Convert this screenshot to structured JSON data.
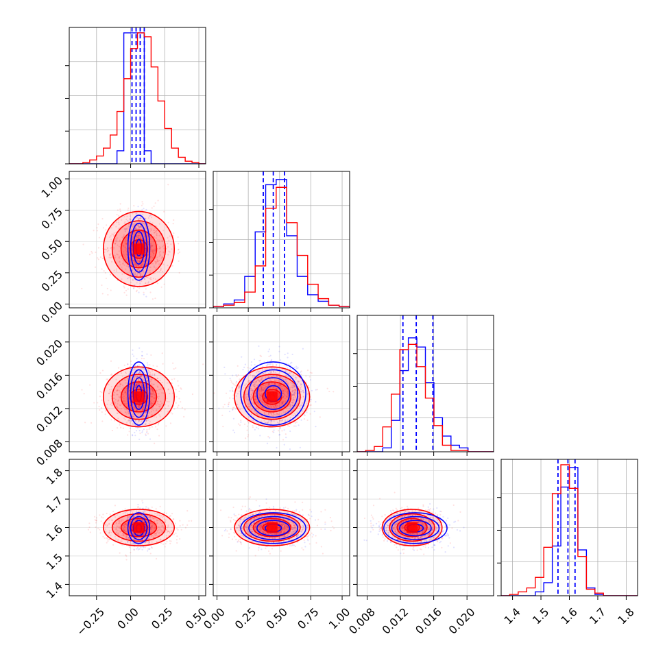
{
  "chart_data": {
    "type": "corner",
    "grid": true,
    "series": [
      {
        "color": "#0000ff",
        "hist": {
          "p0": [
            0,
            0,
            0,
            0,
            0,
            0,
            0,
            0.1,
            1.0,
            1.0,
            1.0,
            0.1,
            0,
            0,
            0,
            0,
            0,
            0,
            0,
            0
          ],
          "p1": [
            0.01,
            0.03,
            0.06,
            0.24,
            0.58,
            0.94,
            0.98,
            0.55,
            0.24,
            0.1,
            0.05,
            0.02,
            0.01
          ],
          "p2": [
            0,
            0,
            0,
            0.03,
            0.24,
            0.62,
            0.87,
            0.8,
            0.53,
            0.26,
            0.12,
            0.05,
            0.03,
            0,
            0,
            0
          ],
          "p3": [
            0,
            0,
            0,
            0,
            0.03,
            0.1,
            0.38,
            0.83,
            0.98,
            0.35,
            0.06,
            0.01,
            0,
            0,
            0,
            0
          ]
        },
        "quantiles": {
          "p0": [
            0.01,
            0.04,
            0.07,
            0.1
          ],
          "p1": [
            0.37,
            0.45,
            0.54
          ],
          "p2": [
            0.0123,
            0.0139,
            0.0159
          ],
          "p3": [
            1.56,
            1.595,
            1.62
          ]
        }
      },
      {
        "color": "#ff0000",
        "hist": {
          "p0": [
            0,
            0,
            0.01,
            0.03,
            0.06,
            0.12,
            0.22,
            0.4,
            0.65,
            0.88,
            1.0,
            0.97,
            0.74,
            0.48,
            0.27,
            0.12,
            0.05,
            0.02,
            0.01,
            0
          ],
          "p1": [
            0.01,
            0.02,
            0.04,
            0.12,
            0.32,
            0.76,
            0.92,
            0.65,
            0.4,
            0.18,
            0.07,
            0.02,
            0.01
          ],
          "p2": [
            0,
            0.01,
            0.04,
            0.19,
            0.44,
            0.78,
            0.82,
            0.65,
            0.41,
            0.2,
            0.05,
            0.01,
            0.01,
            0,
            0,
            0
          ],
          "p3": [
            0,
            0.01,
            0.03,
            0.06,
            0.14,
            0.37,
            0.78,
            1.0,
            0.82,
            0.3,
            0.05,
            0.02,
            0,
            0,
            0,
            0
          ]
        },
        "quantiles": {}
      }
    ],
    "parameters": [
      {
        "id": "p0",
        "xlim": [
          -0.45,
          0.55
        ],
        "ticks": [
          -0.25,
          0.0,
          0.25,
          0.5
        ],
        "tick_labels": [
          "−0.25",
          "0.00",
          "0.25",
          "0.50"
        ]
      },
      {
        "id": "p1",
        "xlim": [
          -0.03,
          1.06
        ],
        "ticks": [
          0.0,
          0.25,
          0.5,
          0.75,
          1.0
        ],
        "tick_labels": [
          "0.00",
          "0.25",
          "0.50",
          "0.75",
          "1.00"
        ]
      },
      {
        "id": "p2",
        "xlim": [
          0.0068,
          0.0232
        ],
        "ticks": [
          0.008,
          0.012,
          0.016,
          0.02
        ],
        "tick_labels": [
          "0.008",
          "0.012",
          "0.016",
          "0.020"
        ]
      },
      {
        "id": "p3",
        "xlim": [
          1.36,
          1.84
        ],
        "ticks": [
          1.4,
          1.5,
          1.6,
          1.7,
          1.8
        ],
        "tick_labels": [
          "1.4",
          "1.5",
          "1.6",
          "1.7",
          "1.8"
        ]
      }
    ],
    "distributions": {
      "red": {
        "mean": [
          0.06,
          0.44,
          0.0134,
          1.6
        ],
        "std": [
          0.13,
          0.15,
          0.0018,
          0.032
        ]
      },
      "blue": {
        "mean": [
          0.06,
          0.45,
          0.0138,
          1.598
        ],
        "std": [
          0.04,
          0.13,
          0.0019,
          0.027
        ]
      }
    }
  }
}
